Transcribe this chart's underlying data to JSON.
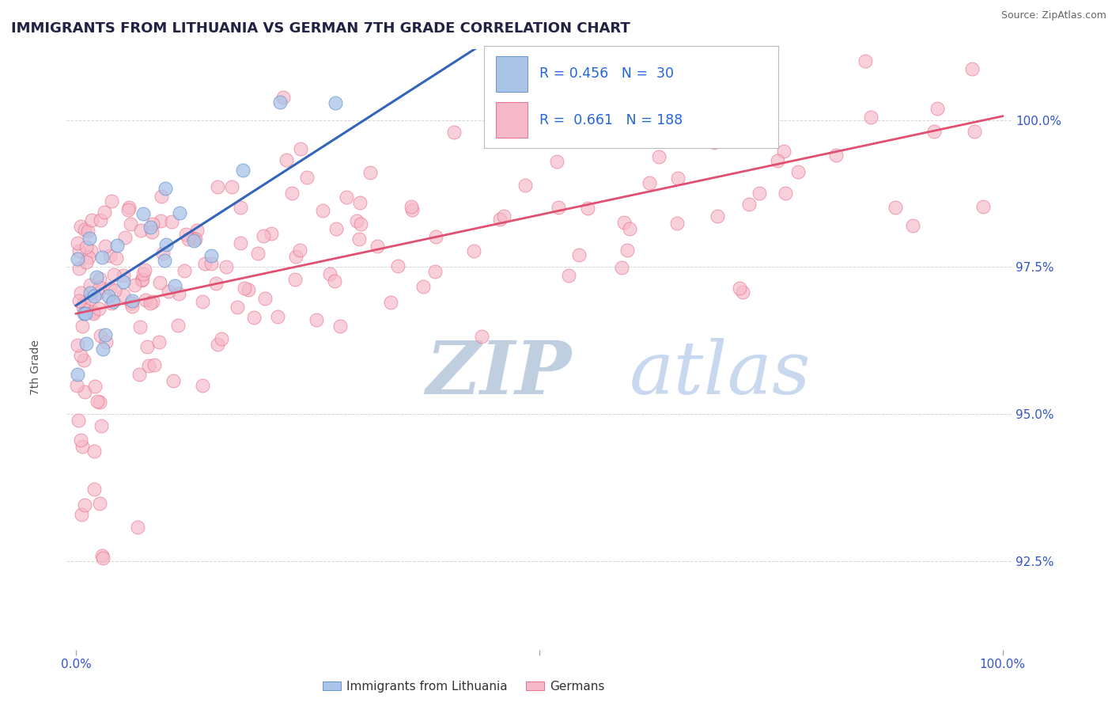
{
  "title": "IMMIGRANTS FROM LITHUANIA VS GERMAN 7TH GRADE CORRELATION CHART",
  "source": "Source: ZipAtlas.com",
  "ylabel": "7th Grade",
  "ytick_values": [
    92.5,
    95.0,
    97.5,
    100.0
  ],
  "xlim": [
    -1,
    101
  ],
  "ylim": [
    91.0,
    101.2
  ],
  "blue_fill": "#aac4e8",
  "blue_edge": "#5588cc",
  "pink_fill": "#f5b8c8",
  "pink_edge": "#e8607a",
  "blue_line_color": "#3366bb",
  "pink_line_color": "#e05070",
  "title_color": "#222244",
  "source_color": "#666666",
  "watermark_zip_color": "#c8d4e4",
  "watermark_atlas_color": "#c8d8f0",
  "background_color": "#ffffff",
  "grid_color": "#cccccc",
  "legend_value_color": "#2266dd",
  "ytick_color": "#3355cc",
  "xtick_color": "#3355cc"
}
